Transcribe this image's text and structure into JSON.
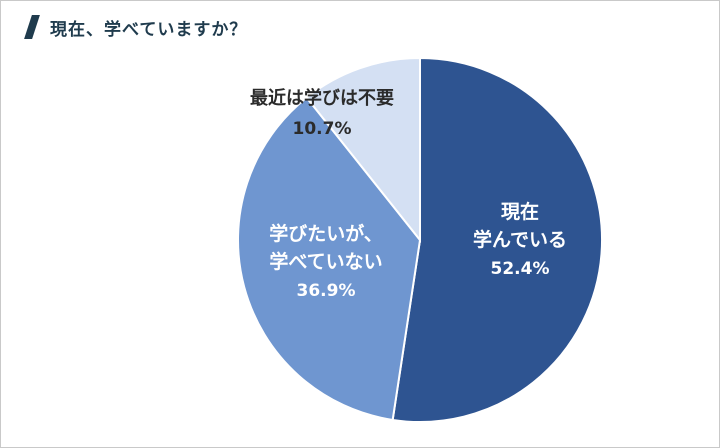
{
  "title": "現在、学べていますか？",
  "chart_data": {
    "type": "pie",
    "slices": [
      {
        "label_lines": [
          "現在",
          "学んでいる"
        ],
        "value": 52.4,
        "value_label": "52.4%",
        "color": "#2e5491",
        "label_color": "#ffffff"
      },
      {
        "label_lines": [
          "学びたいが、",
          "学べていない"
        ],
        "value": 36.9,
        "value_label": "36.9%",
        "color": "#6f96d0",
        "label_color": "#ffffff"
      },
      {
        "label_lines": [
          "最近は学びは不要"
        ],
        "value": 10.7,
        "value_label": "10.7%",
        "color": "#d4e0f3",
        "label_color": "#2b2b2b"
      }
    ]
  }
}
